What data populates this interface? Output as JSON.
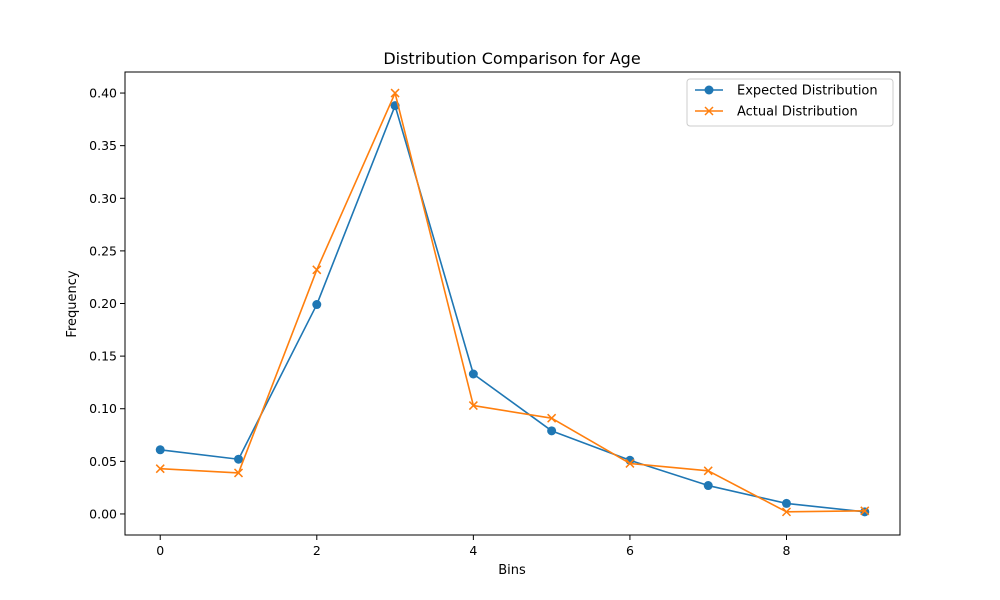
{
  "chart_data": {
    "type": "line",
    "title": "Distribution Comparison for Age",
    "xlabel": "Bins",
    "ylabel": "Frequency",
    "xlim": [
      -0.45,
      9.45
    ],
    "ylim": [
      -0.02,
      0.42
    ],
    "x_ticks": [
      0,
      2,
      4,
      6,
      8
    ],
    "y_ticks": [
      0.0,
      0.05,
      0.1,
      0.15,
      0.2,
      0.25,
      0.3,
      0.35,
      0.4
    ],
    "x_tick_labels": [
      "0",
      "2",
      "4",
      "6",
      "8"
    ],
    "y_tick_labels": [
      "0.00",
      "0.05",
      "0.10",
      "0.15",
      "0.20",
      "0.25",
      "0.30",
      "0.35",
      "0.40"
    ],
    "grid": false,
    "legend_position": "top-right",
    "x": [
      0,
      1,
      2,
      3,
      4,
      5,
      6,
      7,
      8,
      9
    ],
    "series": [
      {
        "name": "Expected Distribution",
        "color": "#1f77b4",
        "marker": "circle",
        "values": [
          0.061,
          0.052,
          0.199,
          0.388,
          0.133,
          0.079,
          0.051,
          0.027,
          0.01,
          0.002
        ]
      },
      {
        "name": "Actual Distribution",
        "color": "#ff7f0e",
        "marker": "x",
        "values": [
          0.043,
          0.039,
          0.232,
          0.4,
          0.103,
          0.091,
          0.048,
          0.041,
          0.002,
          0.003
        ]
      }
    ]
  }
}
